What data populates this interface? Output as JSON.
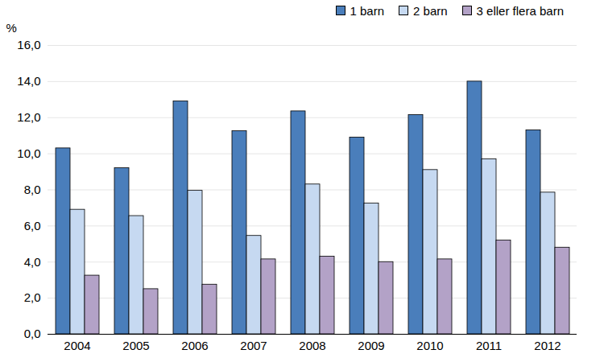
{
  "chart_data": {
    "type": "bar",
    "y_label": "%",
    "categories": [
      "2004",
      "2005",
      "2006",
      "2007",
      "2008",
      "2009",
      "2010",
      "2011",
      "2012"
    ],
    "series": [
      {
        "name": "1 barn",
        "color": "#4a7ebb",
        "values": [
          10.3,
          9.2,
          12.9,
          11.25,
          12.35,
          10.9,
          12.15,
          14.0,
          11.3
        ]
      },
      {
        "name": "2 barn",
        "color": "#c6d9f1",
        "values": [
          6.9,
          6.55,
          7.95,
          5.45,
          8.3,
          7.25,
          9.1,
          9.7,
          7.85
        ]
      },
      {
        "name": "3 eller flera barn",
        "color": "#b3a2c7",
        "values": [
          3.25,
          2.5,
          2.75,
          4.15,
          4.3,
          4.0,
          4.15,
          5.2,
          4.8
        ]
      }
    ],
    "ylim": [
      0,
      16
    ],
    "yticks": [
      {
        "value": 0,
        "label": "0,0"
      },
      {
        "value": 2,
        "label": "2,0"
      },
      {
        "value": 4,
        "label": "4,0"
      },
      {
        "value": 6,
        "label": "6,0"
      },
      {
        "value": 8,
        "label": "8,0"
      },
      {
        "value": 10,
        "label": "10,0"
      },
      {
        "value": 12,
        "label": "12,0"
      },
      {
        "value": 14,
        "label": "14,0"
      },
      {
        "value": 16,
        "label": "16,0"
      }
    ],
    "grid": true,
    "legend": "top-right"
  }
}
